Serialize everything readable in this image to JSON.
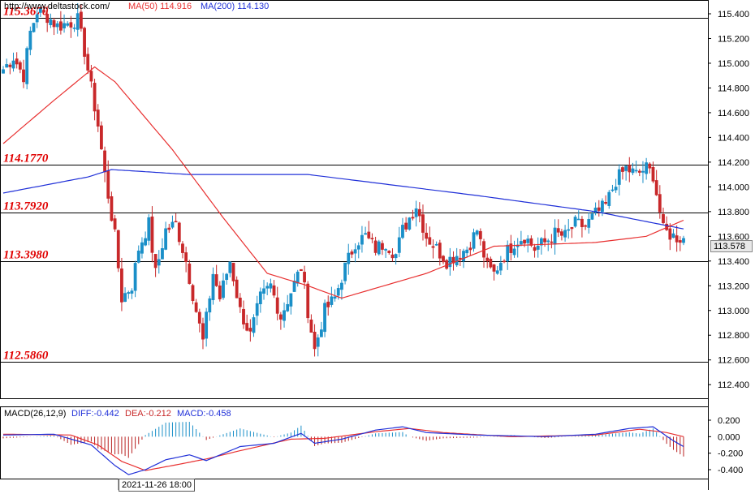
{
  "header": {
    "url": "http://www.deltastock.com/",
    "ma50_label": "MA(50)",
    "ma50_value": "114.916",
    "ma200_label": "MA(200)",
    "ma200_value": "114.130"
  },
  "macd_header": {
    "name": "MACD(26,12,9)",
    "diff_label": "DIFF:",
    "diff_value": "-0.442",
    "dea_label": "DEA:",
    "dea_value": "-0.212",
    "macd_label": "MACD:",
    "macd_value": "-0.458"
  },
  "colors": {
    "bull": "#1a8fc8",
    "bear": "#c8282a",
    "ma50": "#e83030",
    "ma200": "#2030d8",
    "level_text": "#e00000",
    "level_line": "#000000",
    "grid": "#000000",
    "macd_hist_pos": "#1a8fc8",
    "macd_hist_neg": "#b82020"
  },
  "current_price": "113.578",
  "time_label": "2021-11-26 18:00",
  "chart_data": [
    {
      "type": "candlestick",
      "ylim": [
        112.3,
        115.5
      ],
      "yticks": [
        "115.400",
        "115.200",
        "115.000",
        "114.800",
        "114.600",
        "114.400",
        "114.200",
        "114.000",
        "113.800",
        "113.600",
        "113.400",
        "113.200",
        "113.000",
        "112.800",
        "112.600",
        "112.400"
      ],
      "levels": [
        {
          "label": "115.3670",
          "value": 115.367
        },
        {
          "label": "114.1770",
          "value": 114.177
        },
        {
          "label": "113.7920",
          "value": 113.792
        },
        {
          "label": "113.3980",
          "value": 113.398
        },
        {
          "label": "112.5860",
          "value": 112.586
        }
      ],
      "anchors": [
        [
          0,
          114.95
        ],
        [
          3,
          115.05
        ],
        [
          6,
          114.9
        ],
        [
          8,
          115.25
        ],
        [
          10,
          115.42
        ],
        [
          13,
          115.38
        ],
        [
          16,
          115.3
        ],
        [
          20,
          115.33
        ],
        [
          22,
          115.35
        ],
        [
          24,
          115.1
        ],
        [
          26,
          114.8
        ],
        [
          28,
          114.5
        ],
        [
          30,
          114.1
        ],
        [
          33,
          113.6
        ],
        [
          35,
          113.1
        ],
        [
          38,
          113.2
        ],
        [
          40,
          113.5
        ],
        [
          43,
          113.7
        ],
        [
          45,
          113.3
        ],
        [
          48,
          113.65
        ],
        [
          51,
          113.7
        ],
        [
          54,
          113.4
        ],
        [
          57,
          113.0
        ],
        [
          59,
          112.75
        ],
        [
          62,
          113.3
        ],
        [
          64,
          113.1
        ],
        [
          67,
          113.4
        ],
        [
          70,
          113.0
        ],
        [
          73,
          112.8
        ],
        [
          76,
          113.1
        ],
        [
          79,
          113.2
        ],
        [
          82,
          112.95
        ],
        [
          85,
          113.15
        ],
        [
          88,
          113.35
        ],
        [
          90,
          113.0
        ],
        [
          92,
          112.68
        ],
        [
          95,
          113.0
        ],
        [
          98,
          113.1
        ],
        [
          101,
          113.35
        ],
        [
          104,
          113.55
        ],
        [
          107,
          113.6
        ],
        [
          110,
          113.5
        ],
        [
          113,
          113.55
        ],
        [
          116,
          113.45
        ],
        [
          118,
          113.65
        ],
        [
          120,
          113.75
        ],
        [
          122,
          113.85
        ],
        [
          125,
          113.6
        ],
        [
          128,
          113.5
        ],
        [
          131,
          113.4
        ],
        [
          134,
          113.45
        ],
        [
          137,
          113.5
        ],
        [
          140,
          113.65
        ],
        [
          143,
          113.35
        ],
        [
          145,
          113.3
        ],
        [
          148,
          113.45
        ],
        [
          151,
          113.55
        ],
        [
          154,
          113.6
        ],
        [
          157,
          113.5
        ],
        [
          160,
          113.55
        ],
        [
          163,
          113.62
        ],
        [
          166,
          113.6
        ],
        [
          169,
          113.7
        ],
        [
          172,
          113.68
        ],
        [
          175,
          113.78
        ],
        [
          178,
          113.85
        ],
        [
          181,
          114.05
        ],
        [
          184,
          114.15
        ],
        [
          187,
          114.1
        ],
        [
          190,
          114.15
        ],
        [
          192,
          114.1
        ],
        [
          195,
          113.65
        ],
        [
          198,
          113.6
        ],
        [
          201,
          113.58
        ]
      ],
      "ma200": [
        [
          0,
          113.95
        ],
        [
          25,
          114.08
        ],
        [
          32,
          114.14
        ],
        [
          55,
          114.1
        ],
        [
          90,
          114.1
        ],
        [
          140,
          113.93
        ],
        [
          175,
          113.8
        ],
        [
          201,
          113.66
        ]
      ],
      "ma50": [
        [
          0,
          114.35
        ],
        [
          15,
          114.7
        ],
        [
          27,
          114.97
        ],
        [
          33,
          114.85
        ],
        [
          50,
          114.3
        ],
        [
          65,
          113.75
        ],
        [
          78,
          113.3
        ],
        [
          90,
          113.2
        ],
        [
          100,
          113.1
        ],
        [
          125,
          113.3
        ],
        [
          145,
          113.52
        ],
        [
          175,
          113.55
        ],
        [
          190,
          113.6
        ],
        [
          201,
          113.73
        ]
      ]
    },
    {
      "type": "macd",
      "ylim": [
        -0.52,
        0.27
      ],
      "yticks": [
        {
          "label": "0.200",
          "value": 0.2
        },
        {
          "label": "0.000",
          "value": 0.0
        },
        {
          "label": "-0.200",
          "value": -0.2
        },
        {
          "label": "-0.400",
          "value": -0.4
        }
      ],
      "diff": [
        [
          0,
          0.02
        ],
        [
          15,
          0.03
        ],
        [
          26,
          -0.1
        ],
        [
          33,
          -0.35
        ],
        [
          37,
          -0.46
        ],
        [
          42,
          -0.4
        ],
        [
          48,
          -0.28
        ],
        [
          55,
          -0.22
        ],
        [
          60,
          -0.29
        ],
        [
          70,
          -0.12
        ],
        [
          80,
          -0.08
        ],
        [
          88,
          0.04
        ],
        [
          92,
          -0.08
        ],
        [
          100,
          -0.03
        ],
        [
          110,
          0.08
        ],
        [
          118,
          0.12
        ],
        [
          125,
          0.05
        ],
        [
          140,
          0.02
        ],
        [
          160,
          0.0
        ],
        [
          175,
          0.03
        ],
        [
          185,
          0.1
        ],
        [
          192,
          0.12
        ],
        [
          198,
          -0.05
        ],
        [
          201,
          -0.12
        ]
      ],
      "dea": [
        [
          0,
          0.03
        ],
        [
          20,
          0.02
        ],
        [
          28,
          -0.1
        ],
        [
          35,
          -0.3
        ],
        [
          42,
          -0.41
        ],
        [
          50,
          -0.35
        ],
        [
          60,
          -0.27
        ],
        [
          70,
          -0.17
        ],
        [
          85,
          -0.03
        ],
        [
          95,
          -0.02
        ],
        [
          110,
          0.06
        ],
        [
          120,
          0.1
        ],
        [
          130,
          0.05
        ],
        [
          150,
          0.0
        ],
        [
          175,
          0.02
        ],
        [
          188,
          0.09
        ],
        [
          196,
          0.05
        ],
        [
          201,
          0.0
        ]
      ]
    }
  ]
}
